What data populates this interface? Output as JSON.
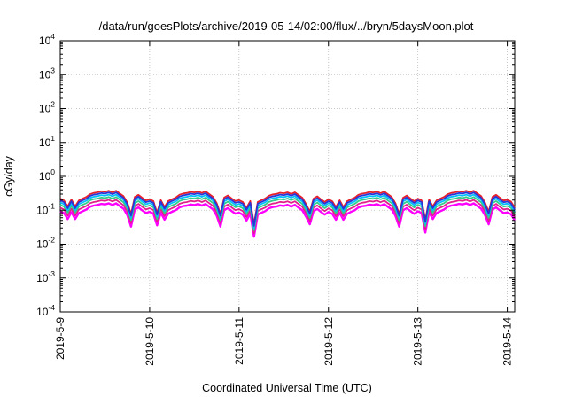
{
  "chart_data": {
    "type": "line",
    "title": "/data/run/goesPlots/archive/2019-05-14/02:00/flux/../bryn/5daysMoon.plot",
    "xlabel": "Coordinated Universal Time (UTC)",
    "ylabel": "cGy/day",
    "yscale": "log",
    "ylim": [
      0.0001,
      10000
    ],
    "xlim": [
      "2019-05-09 00:00",
      "2019-05-14 02:00"
    ],
    "grid": true,
    "legend": "none",
    "x_ticks": [
      "2019-5-9",
      "2019-5-10",
      "2019-5-11",
      "2019-5-12",
      "2019-5-13",
      "2019-5-14"
    ],
    "y_ticks": [
      {
        "base": "10",
        "exp": "4"
      },
      {
        "base": "10",
        "exp": "3"
      },
      {
        "base": "10",
        "exp": "2"
      },
      {
        "base": "10",
        "exp": "1"
      },
      {
        "base": "10",
        "exp": "0"
      },
      {
        "base": "10",
        "exp": "-1"
      },
      {
        "base": "10",
        "exp": "-2"
      },
      {
        "base": "10",
        "exp": "-3"
      },
      {
        "base": "10",
        "exp": "-4"
      }
    ],
    "series_colors": [
      "#ff00ff",
      "#e0218a",
      "#33cc88",
      "#00bfff",
      "#e8202a",
      "#2a35d8"
    ],
    "series_offsets": [
      0.55,
      0.7,
      0.85,
      1.0,
      1.3,
      1.15
    ],
    "base_day": [
      [
        "2019-05-09 00:00",
        0.17
      ],
      [
        "2019-05-09 01:00",
        0.15
      ],
      [
        "2019-05-09 02:00",
        0.1
      ],
      [
        "2019-05-09 03:00",
        0.16
      ],
      [
        "2019-05-09 04:00",
        0.1
      ],
      [
        "2019-05-09 05:00",
        0.15
      ],
      [
        "2019-05-09 06:00",
        0.17
      ],
      [
        "2019-05-09 07:00",
        0.19
      ],
      [
        "2019-05-09 08:00",
        0.23
      ],
      [
        "2019-05-09 09:00",
        0.25
      ],
      [
        "2019-05-09 10:00",
        0.26
      ],
      [
        "2019-05-09 11:00",
        0.28
      ],
      [
        "2019-05-09 12:00",
        0.27
      ],
      [
        "2019-05-09 13:00",
        0.29
      ],
      [
        "2019-05-09 14:00",
        0.26
      ],
      [
        "2019-05-09 15:00",
        0.29
      ],
      [
        "2019-05-09 16:00",
        0.24
      ],
      [
        "2019-05-09 17:00",
        0.2
      ],
      [
        "2019-05-09 18:00",
        0.13
      ],
      [
        "2019-05-09 19:00",
        0.08
      ],
      [
        "2019-05-09 20:00",
        0.19
      ],
      [
        "2019-05-09 21:00",
        0.22
      ],
      [
        "2019-05-09 22:00",
        0.18
      ],
      [
        "2019-05-09 23:00",
        0.15
      ]
    ],
    "day_scale": [
      1.0,
      0.96,
      0.9,
      0.95,
      1.0,
      0.92
    ],
    "dips": [
      [
        "2019-05-09 19:00",
        0.06
      ],
      [
        "2019-05-10 02:00",
        0.065
      ],
      [
        "2019-05-10 19:00",
        0.06
      ],
      [
        "2019-05-11 04:00",
        0.03
      ],
      [
        "2019-05-11 19:00",
        0.07
      ],
      [
        "2019-05-12 19:00",
        0.06
      ],
      [
        "2019-05-13 02:00",
        0.04
      ],
      [
        "2019-05-13 19:00",
        0.07
      ]
    ]
  }
}
